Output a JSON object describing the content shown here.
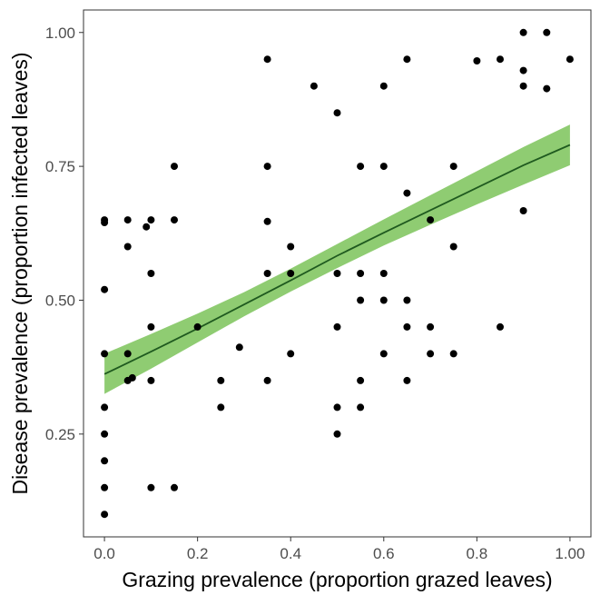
{
  "chart_data": {
    "type": "scatter",
    "title": "",
    "xlabel": "Grazing prevalence (proportion grazed leaves)",
    "ylabel": "Disease prevalence (proportion infected leaves)",
    "xlim": [
      -0.045,
      1.045
    ],
    "ylim": [
      0.058,
      1.042
    ],
    "x_ticks": [
      0,
      0.2,
      0.4,
      0.6,
      0.8,
      1.0
    ],
    "x_tick_labels": [
      "0.0",
      "0.2",
      "0.4",
      "0.6",
      "0.8",
      "1.00"
    ],
    "y_ticks": [
      0.25,
      0.5,
      0.75,
      1.0
    ],
    "y_tick_labels": [
      "0.25",
      "0.50",
      "0.75",
      "1.00"
    ],
    "grid": false,
    "colors": {
      "points": "#000000",
      "fit_line": "#1f5a1f",
      "ribbon": "#8fcc72",
      "axis": "#333333",
      "tick_label": "#4d4d4d"
    },
    "points": [
      {
        "x": 0,
        "y": 0.65
      },
      {
        "x": 0,
        "y": 0.645
      },
      {
        "x": 0,
        "y": 0.52
      },
      {
        "x": 0,
        "y": 0.4
      },
      {
        "x": 0,
        "y": 0.3
      },
      {
        "x": 0,
        "y": 0.25
      },
      {
        "x": 0,
        "y": 0.2
      },
      {
        "x": 0,
        "y": 0.15
      },
      {
        "x": 0,
        "y": 0.1
      },
      {
        "x": 0.05,
        "y": 0.65
      },
      {
        "x": 0.05,
        "y": 0.6
      },
      {
        "x": 0.05,
        "y": 0.4
      },
      {
        "x": 0.05,
        "y": 0.35
      },
      {
        "x": 0.06,
        "y": 0.355
      },
      {
        "x": 0.09,
        "y": 0.637
      },
      {
        "x": 0.1,
        "y": 0.65
      },
      {
        "x": 0.1,
        "y": 0.55
      },
      {
        "x": 0.1,
        "y": 0.45
      },
      {
        "x": 0.1,
        "y": 0.35
      },
      {
        "x": 0.1,
        "y": 0.15
      },
      {
        "x": 0.15,
        "y": 0.75
      },
      {
        "x": 0.15,
        "y": 0.65
      },
      {
        "x": 0.15,
        "y": 0.15
      },
      {
        "x": 0.2,
        "y": 0.45
      },
      {
        "x": 0.25,
        "y": 0.35
      },
      {
        "x": 0.25,
        "y": 0.3
      },
      {
        "x": 0.29,
        "y": 0.412
      },
      {
        "x": 0.35,
        "y": 0.95
      },
      {
        "x": 0.35,
        "y": 0.75
      },
      {
        "x": 0.35,
        "y": 0.647
      },
      {
        "x": 0.35,
        "y": 0.55
      },
      {
        "x": 0.35,
        "y": 0.35
      },
      {
        "x": 0.4,
        "y": 0.6
      },
      {
        "x": 0.4,
        "y": 0.55
      },
      {
        "x": 0.4,
        "y": 0.4
      },
      {
        "x": 0.45,
        "y": 0.9
      },
      {
        "x": 0.5,
        "y": 0.85
      },
      {
        "x": 0.5,
        "y": 0.55
      },
      {
        "x": 0.5,
        "y": 0.45
      },
      {
        "x": 0.5,
        "y": 0.3
      },
      {
        "x": 0.5,
        "y": 0.25
      },
      {
        "x": 0.55,
        "y": 0.75
      },
      {
        "x": 0.55,
        "y": 0.55
      },
      {
        "x": 0.55,
        "y": 0.5
      },
      {
        "x": 0.55,
        "y": 0.35
      },
      {
        "x": 0.55,
        "y": 0.3
      },
      {
        "x": 0.6,
        "y": 0.9
      },
      {
        "x": 0.6,
        "y": 0.75
      },
      {
        "x": 0.6,
        "y": 0.55
      },
      {
        "x": 0.6,
        "y": 0.5
      },
      {
        "x": 0.6,
        "y": 0.4
      },
      {
        "x": 0.65,
        "y": 0.95
      },
      {
        "x": 0.65,
        "y": 0.7
      },
      {
        "x": 0.65,
        "y": 0.5
      },
      {
        "x": 0.65,
        "y": 0.45
      },
      {
        "x": 0.65,
        "y": 0.35
      },
      {
        "x": 0.7,
        "y": 0.65
      },
      {
        "x": 0.7,
        "y": 0.45
      },
      {
        "x": 0.7,
        "y": 0.4
      },
      {
        "x": 0.75,
        "y": 0.75
      },
      {
        "x": 0.75,
        "y": 0.6
      },
      {
        "x": 0.75,
        "y": 0.4
      },
      {
        "x": 0.8,
        "y": 0.947
      },
      {
        "x": 0.85,
        "y": 0.95
      },
      {
        "x": 0.85,
        "y": 0.45
      },
      {
        "x": 0.9,
        "y": 1.0
      },
      {
        "x": 0.9,
        "y": 0.929
      },
      {
        "x": 0.9,
        "y": 0.9
      },
      {
        "x": 0.9,
        "y": 0.667
      },
      {
        "x": 0.95,
        "y": 1.0
      },
      {
        "x": 0.95,
        "y": 0.895
      },
      {
        "x": 1.0,
        "y": 0.95
      }
    ],
    "fit": {
      "x": [
        0.0,
        0.1,
        0.2,
        0.3,
        0.4,
        0.5,
        0.6,
        0.7,
        0.8,
        0.9,
        1.0
      ],
      "y": [
        0.362,
        0.404,
        0.447,
        0.492,
        0.537,
        0.583,
        0.626,
        0.668,
        0.71,
        0.752,
        0.79
      ],
      "lower": [
        0.325,
        0.372,
        0.421,
        0.47,
        0.516,
        0.56,
        0.602,
        0.641,
        0.679,
        0.716,
        0.752
      ],
      "upper": [
        0.4,
        0.437,
        0.475,
        0.515,
        0.559,
        0.605,
        0.651,
        0.696,
        0.741,
        0.786,
        0.828
      ]
    }
  }
}
